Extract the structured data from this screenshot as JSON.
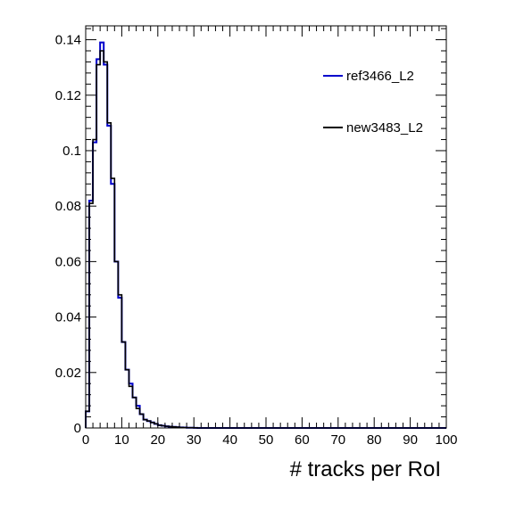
{
  "chart_data": {
    "type": "line",
    "title": "",
    "xlabel": "# tracks per RoI",
    "ylabel": "",
    "xlim": [
      0,
      100
    ],
    "ylim": [
      0,
      0.145
    ],
    "x_ticks": [
      0,
      10,
      20,
      30,
      40,
      50,
      60,
      70,
      80,
      90,
      100
    ],
    "y_ticks": [
      0,
      0.02,
      0.04,
      0.06,
      0.08,
      0.1,
      0.12,
      0.14
    ],
    "y_tick_labels": [
      "0",
      "0.02",
      "0.04",
      "0.06",
      "0.08",
      "0.1",
      "0.12",
      "0.14"
    ],
    "bin_width": 1,
    "bin_edges_start": 0,
    "legend_position": "top-right",
    "series": [
      {
        "name": "ref3466_L2",
        "color": "#0000cc",
        "values": [
          0.006,
          0.082,
          0.103,
          0.133,
          0.139,
          0.131,
          0.109,
          0.088,
          0.06,
          0.047,
          0.031,
          0.021,
          0.016,
          0.011,
          0.008,
          0.005,
          0.003,
          0.0025,
          0.002,
          0.0015,
          0.001,
          0.0008,
          0.0006,
          0.0005,
          0.0004,
          0.0003,
          0.0002,
          0.00015,
          0.0001,
          0.0001,
          5e-05
        ]
      },
      {
        "name": "new3483_L2",
        "color": "#000000",
        "values": [
          0.006,
          0.081,
          0.104,
          0.131,
          0.136,
          0.132,
          0.11,
          0.09,
          0.06,
          0.048,
          0.031,
          0.021,
          0.015,
          0.011,
          0.007,
          0.005,
          0.003,
          0.0025,
          0.002,
          0.0015,
          0.001,
          0.0008,
          0.0006,
          0.0005,
          0.0004,
          0.0003,
          0.0002,
          0.00015,
          0.0001,
          0.0001,
          5e-05
        ]
      }
    ]
  }
}
